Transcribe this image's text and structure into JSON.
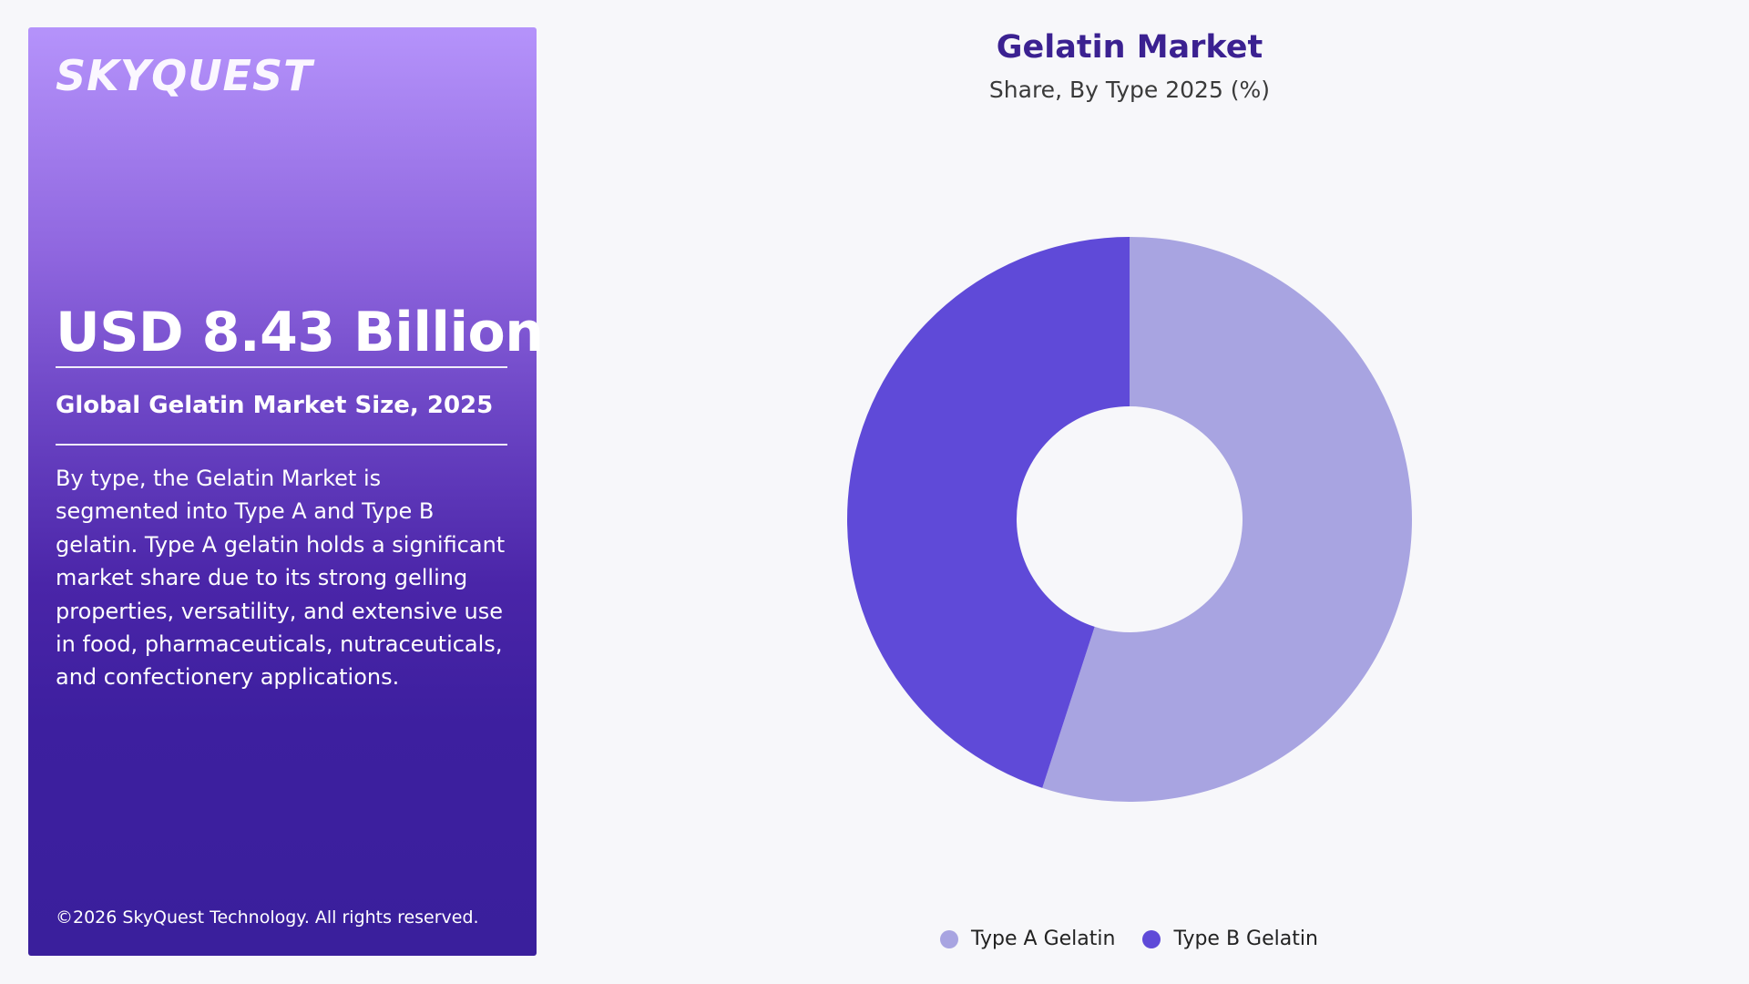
{
  "side_panel": {
    "logo_text": "SKYQUEST",
    "headline": "USD 8.43 Billion",
    "subhead": "Global Gelatin Market Size, 2025",
    "description": "By type, the Gelatin Market is segmented into Type A and Type B gelatin. Type A gelatin holds a significant market share due to its strong gelling properties, versatility, and extensive use in food, pharmaceuticals, nutraceuticals, and confectionery applications.",
    "copyright": "©2026 SkyQuest Technology. All rights reserved."
  },
  "chart_data": {
    "type": "pie",
    "title": "Gelatin Market",
    "subtitle": "Share, By Type 2025 (%)",
    "donut": true,
    "categories": [
      "Type A Gelatin",
      "Type B Gelatin"
    ],
    "values": [
      55,
      45
    ],
    "colors": [
      "#a8a4e1",
      "#5f4ad8"
    ],
    "legend_position": "bottom-center"
  },
  "colors": {
    "title": "#3b2191",
    "background": "#f7f7fa"
  }
}
